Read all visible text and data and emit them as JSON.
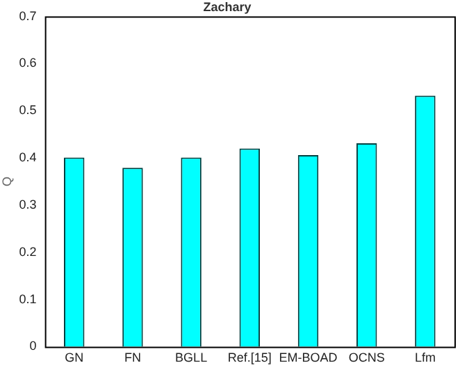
{
  "chart_data": {
    "type": "bar",
    "title": "Zachary",
    "ylabel": "Q",
    "categories": [
      "GN",
      "FN",
      "BGLL",
      "Ref.[15]",
      "EM-BOAD",
      "OCNS",
      "Lfm"
    ],
    "values": [
      0.401,
      0.379,
      0.401,
      0.42,
      0.406,
      0.431,
      0.532
    ],
    "color": "#00ffff",
    "ylim": [
      0,
      0.7
    ],
    "yticks": [
      0,
      0.1,
      0.2,
      0.3,
      0.4,
      0.5,
      0.6,
      0.7
    ],
    "grid": false,
    "legend": false
  }
}
